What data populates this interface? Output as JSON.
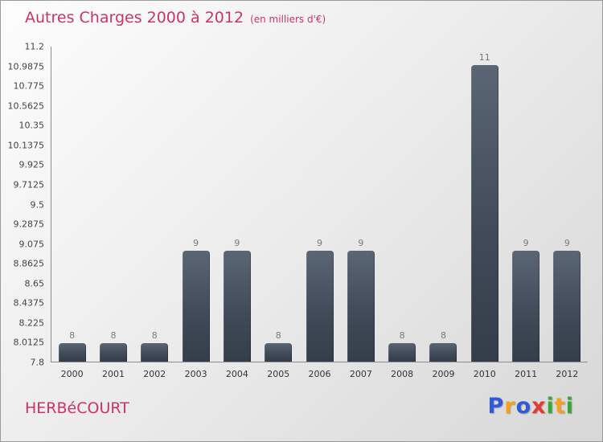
{
  "header": {
    "title": "Autres Charges 2000 à 2012",
    "subtitle": "(en milliers d'€)"
  },
  "footer": {
    "company": "HERBéCOURT",
    "logo": {
      "text": "Proxiti",
      "letters": [
        {
          "ch": "P",
          "color": "#2f5bd7"
        },
        {
          "ch": "r",
          "color": "#f5a11c"
        },
        {
          "ch": "o",
          "color": "#2f5bd7"
        },
        {
          "ch": "x",
          "color": "#e03c31"
        },
        {
          "ch": "i",
          "color": "#35a835"
        },
        {
          "ch": "t",
          "color": "#f5a11c"
        },
        {
          "ch": "i",
          "color": "#35a835"
        }
      ]
    }
  },
  "chart_data": {
    "type": "bar",
    "title": "Autres Charges 2000 à 2012 (en milliers d'€)",
    "categories": [
      "2000",
      "2001",
      "2002",
      "2003",
      "2004",
      "2005",
      "2006",
      "2007",
      "2008",
      "2009",
      "2010",
      "2011",
      "2012"
    ],
    "values": [
      8,
      8,
      8,
      9,
      9,
      8,
      9,
      9,
      8,
      8,
      11,
      9,
      9
    ],
    "xlabel": "",
    "ylabel": "",
    "ylim": [
      7.8,
      11.2
    ],
    "yticks": [
      "7.8",
      "8.0125",
      "8.225",
      "8.4375",
      "8.65",
      "8.8625",
      "9.075",
      "9.2875",
      "9.5",
      "9.7125",
      "9.925",
      "10.1375",
      "10.35",
      "10.5625",
      "10.775",
      "10.9875",
      "11.2"
    ],
    "grid": false,
    "legend": "none",
    "bar_color_top": "#5b6675",
    "bar_color_bottom": "#343e4a",
    "value_label_color": "#7a7a7a"
  }
}
